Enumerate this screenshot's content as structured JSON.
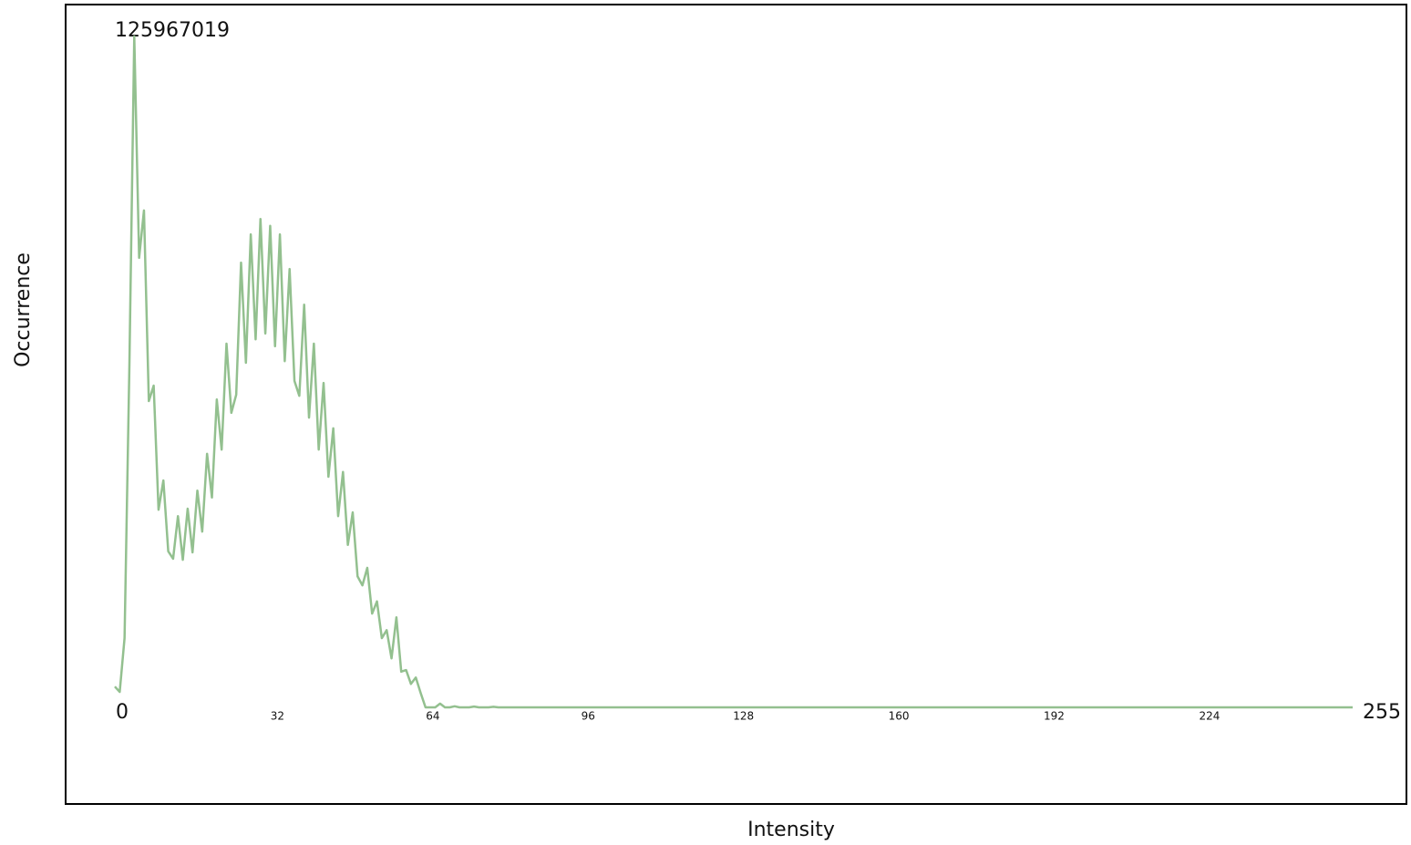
{
  "chart_data": {
    "type": "line",
    "x_label": "Intensity",
    "y_label": "Occurrence",
    "xlim": [
      0,
      255
    ],
    "ylim": [
      0,
      125967019
    ],
    "xticks": [
      0,
      32,
      64,
      96,
      128,
      160,
      192,
      224,
      255
    ],
    "yticks": [
      125967019
    ],
    "color": "#93c08f",
    "grid": false,
    "x": [
      0,
      1,
      2,
      3,
      4,
      5,
      6,
      7,
      8,
      9,
      10,
      11,
      12,
      13,
      14,
      15,
      16,
      17,
      18,
      19,
      20,
      21,
      22,
      23,
      24,
      25,
      26,
      27,
      28,
      29,
      30,
      31,
      32,
      33,
      34,
      35,
      36,
      37,
      38,
      39,
      40,
      41,
      42,
      43,
      44,
      45,
      46,
      47,
      48,
      49,
      50,
      51,
      52,
      53,
      54,
      55,
      56,
      57,
      58,
      59,
      60,
      61,
      62,
      63,
      64,
      65,
      66,
      67,
      68,
      69,
      70,
      71,
      72,
      73,
      74,
      75,
      76,
      77,
      78,
      79,
      80,
      81,
      82,
      83,
      84,
      85,
      86,
      87,
      88,
      89,
      90,
      91,
      92,
      93,
      94,
      95,
      96,
      97,
      98,
      99,
      100,
      101,
      102,
      103,
      104,
      105,
      106,
      107,
      108,
      109,
      110,
      111,
      112,
      113,
      114,
      115,
      116,
      117,
      118,
      119,
      120,
      121,
      122,
      123,
      124,
      125,
      126,
      127,
      128,
      129,
      130,
      131,
      132,
      133,
      134,
      135,
      136,
      137,
      138,
      139,
      140,
      141,
      142,
      143,
      144,
      145,
      146,
      147,
      148,
      149,
      150,
      151,
      152,
      153,
      154,
      155,
      156,
      157,
      158,
      159,
      160,
      161,
      162,
      163,
      164,
      165,
      166,
      167,
      168,
      169,
      170,
      171,
      172,
      173,
      174,
      175,
      176,
      177,
      178,
      179,
      180,
      181,
      182,
      183,
      184,
      185,
      186,
      187,
      188,
      189,
      190,
      191,
      192,
      193,
      194,
      195,
      196,
      197,
      198,
      199,
      200,
      201,
      202,
      203,
      204,
      205,
      206,
      207,
      208,
      209,
      210,
      211,
      212,
      213,
      214,
      215,
      216,
      217,
      218,
      219,
      220,
      221,
      222,
      223,
      224,
      225,
      226,
      227,
      228,
      229,
      230,
      231,
      232,
      233,
      234,
      235,
      236,
      237,
      238,
      239,
      240,
      241,
      242,
      243,
      244,
      245,
      246,
      247,
      248,
      249,
      250,
      251,
      252,
      253,
      254,
      255
    ],
    "values": [
      3900000,
      2900000,
      13000000,
      64400000,
      125967019,
      84400000,
      93300000,
      57500000,
      60400000,
      37100000,
      42600000,
      29300000,
      27900000,
      35900000,
      27700000,
      37300000,
      29100000,
      40700000,
      33000000,
      47600000,
      39400000,
      57800000,
      48400000,
      68300000,
      55300000,
      58700000,
      83500000,
      64700000,
      88800000,
      69100000,
      91700000,
      70200000,
      90400000,
      67800000,
      88800000,
      65000000,
      82300000,
      61300000,
      58500000,
      75600000,
      54400000,
      68300000,
      48400000,
      60900000,
      43300000,
      52400000,
      35900000,
      44200000,
      30500000,
      36600000,
      24600000,
      22900000,
      26200000,
      17600000,
      19900000,
      13000000,
      14500000,
      9200000,
      16900000,
      6700000,
      7000000,
      4400000,
      5600000,
      2700000,
      0,
      0,
      0,
      700000,
      0,
      0,
      200000,
      0,
      0,
      0,
      150000,
      0,
      0,
      0,
      100000,
      0,
      0,
      0,
      0,
      0,
      0,
      0,
      0,
      0,
      0,
      0,
      0,
      0,
      0,
      0,
      0,
      0,
      0,
      0,
      0,
      0,
      0,
      0,
      0,
      0,
      0,
      0,
      0,
      0,
      0,
      0,
      0,
      0,
      0,
      0,
      0,
      0,
      0,
      0,
      0,
      0,
      0,
      0,
      0,
      0,
      0,
      0,
      0,
      0,
      0,
      0,
      0,
      0,
      0,
      0,
      0,
      0,
      0,
      0,
      0,
      0,
      0,
      0,
      0,
      0,
      0,
      0,
      0,
      0,
      0,
      0,
      0,
      0,
      0,
      0,
      0,
      0,
      0,
      0,
      0,
      0,
      0,
      0,
      0,
      0,
      0,
      0,
      0,
      0,
      0,
      0,
      0,
      0,
      0,
      0,
      0,
      0,
      0,
      0,
      0,
      0,
      0,
      0,
      0,
      0,
      0,
      0,
      0,
      0,
      0,
      0,
      0,
      0,
      0,
      0,
      0,
      0,
      0,
      0,
      0,
      0,
      0,
      0,
      0,
      0,
      0,
      0,
      0,
      0,
      0,
      0,
      0,
      0,
      0,
      0,
      0,
      0,
      0,
      0,
      0,
      0,
      0,
      0,
      0,
      0,
      0,
      0,
      0,
      0,
      0,
      0,
      0,
      0,
      0,
      0,
      0,
      0,
      0,
      0,
      0,
      0,
      0,
      0,
      0,
      0,
      0,
      0,
      0,
      0,
      0,
      0,
      0,
      0,
      0,
      0,
      0,
      0
    ]
  }
}
